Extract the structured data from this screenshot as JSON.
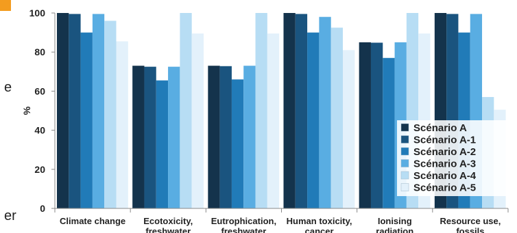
{
  "page": {
    "edge_fragments": [
      "e",
      "er"
    ]
  },
  "colors": {
    "accent": "#f39c1f",
    "series": [
      "#14334c",
      "#1a547f",
      "#217bb8",
      "#59ade2",
      "#b7ddf4",
      "#e3f1fb"
    ]
  },
  "chart_data": {
    "type": "bar",
    "title": "",
    "xlabel": "",
    "ylabel": "%",
    "ylim": [
      0,
      100
    ],
    "yticks": [
      0,
      20,
      40,
      60,
      80,
      100
    ],
    "grid": false,
    "legend_position": "inside-right",
    "categories": [
      [
        "Climate change"
      ],
      [
        "Ecotoxicity,",
        "freshwater"
      ],
      [
        "Eutrophication,",
        "freshwater"
      ],
      [
        "Human toxicity,",
        "cancer"
      ],
      [
        "Ionising",
        "radiation"
      ],
      [
        "Resource use,",
        "fossils"
      ]
    ],
    "series": [
      {
        "name": "Scénario A",
        "values": [
          100,
          73,
          73,
          100,
          85,
          100
        ]
      },
      {
        "name": "Scénario A-1",
        "values": [
          99.5,
          72.5,
          72.8,
          99.5,
          84.8,
          99.5
        ]
      },
      {
        "name": "Scénario A-2",
        "values": [
          90,
          65.5,
          66,
          90,
          77,
          90
        ]
      },
      {
        "name": "Scénario A-3",
        "values": [
          99.5,
          72.5,
          73,
          98,
          85,
          99.5
        ]
      },
      {
        "name": "Scénario A-4",
        "values": [
          96,
          100,
          100,
          92.5,
          100,
          57
        ]
      },
      {
        "name": "Scénario A-5",
        "values": [
          85.5,
          89.5,
          89.5,
          81,
          89.5,
          50.5
        ]
      }
    ]
  }
}
